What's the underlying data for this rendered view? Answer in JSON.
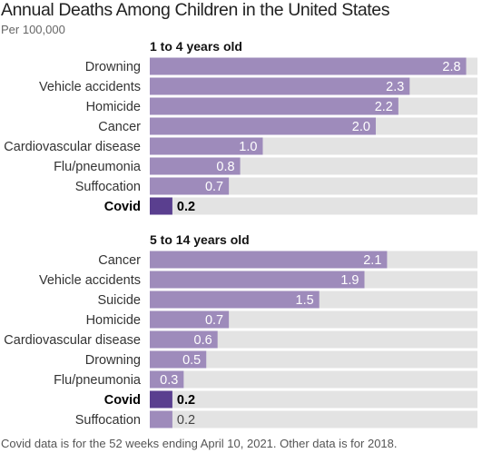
{
  "title": "Annual Deaths Among Children in the United States",
  "subtitle": "Per 100,000",
  "footnote": "Covid data is for the 52 weeks ending April 10, 2021. Other data is for 2018.",
  "colors": {
    "bar": "#9e8bbb",
    "highlight": "#5a3f8f",
    "track": "#e3e3e3",
    "bar_label": "#ffffff",
    "highlight_label": "#000000"
  },
  "chart_data": [
    {
      "type": "bar",
      "orientation": "horizontal",
      "title": "1 to 4 years old",
      "categories": [
        "Drowning",
        "Vehicle accidents",
        "Homicide",
        "Cancer",
        "Cardiovascular disease",
        "Flu/pneumonia",
        "Suffocation",
        "Covid"
      ],
      "values": [
        2.8,
        2.3,
        2.2,
        2.0,
        1.0,
        0.8,
        0.7,
        0.2
      ],
      "value_labels": [
        "2.8",
        "2.3",
        "2.2",
        "2.0",
        "1.0",
        "0.8",
        "0.7",
        "0.2"
      ],
      "highlight": "Covid",
      "xlim": [
        0,
        2.9
      ]
    },
    {
      "type": "bar",
      "orientation": "horizontal",
      "title": "5 to 14 years old",
      "categories": [
        "Cancer",
        "Vehicle accidents",
        "Suicide",
        "Homicide",
        "Cardiovascular disease",
        "Drowning",
        "Flu/pneumonia",
        "Covid",
        "Suffocation"
      ],
      "values": [
        2.1,
        1.9,
        1.5,
        0.7,
        0.6,
        0.5,
        0.3,
        0.2,
        0.2
      ],
      "value_labels": [
        "2.1",
        "1.9",
        "1.5",
        "0.7",
        "0.6",
        "0.5",
        "0.3",
        "0.2",
        "0.2"
      ],
      "highlight": "Covid",
      "xlim": [
        0,
        2.9
      ]
    }
  ]
}
